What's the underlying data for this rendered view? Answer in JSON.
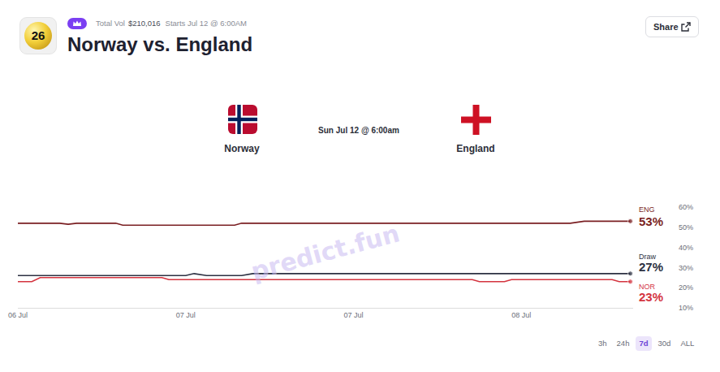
{
  "header": {
    "icon_text": "26",
    "total_vol_label": "Total Vol",
    "total_vol": "$210,016",
    "starts": "Starts Jul 12 @ 6:00AM",
    "title": "Norway vs. England",
    "share": "Share"
  },
  "match": {
    "home": "Norway",
    "away": "England",
    "date": "Sun Jul 12 @ 6:00am"
  },
  "watermark": "predict.fun",
  "range_buttons": {
    "options": [
      "3h",
      "24h",
      "7d",
      "30d",
      "ALL"
    ],
    "selected": "7d"
  },
  "chart_data": {
    "type": "line",
    "x": [
      0,
      1,
      1.6,
      3,
      3.6,
      4.2,
      7,
      7.5,
      10.3,
      10.8,
      12,
      12.6,
      13.5,
      15.5,
      16,
      16.8,
      32.5,
      33,
      34.8,
      35.3,
      39.5,
      40.5,
      42.5,
      43,
      43.8
    ],
    "series": [
      {
        "name": "ENG",
        "color": "#7a1f22",
        "values": [
          52,
          52,
          52,
          52,
          51.5,
          52,
          52,
          51,
          51,
          51,
          51,
          51,
          51,
          51,
          52,
          52,
          52,
          52,
          52,
          52,
          52,
          53,
          53,
          53,
          53
        ],
        "value_labels": [
          null,
          null,
          null,
          null,
          null,
          null,
          null,
          null,
          null,
          null,
          null,
          null,
          null,
          null,
          null,
          null,
          null,
          null,
          null,
          null,
          null,
          null,
          null,
          null,
          "53%"
        ]
      },
      {
        "name": "Draw",
        "color": "#2d3142",
        "values": [
          26,
          26,
          26,
          26,
          26,
          26,
          26,
          26,
          26,
          26,
          26,
          27,
          26,
          26,
          26,
          27,
          27,
          27,
          27,
          27,
          27,
          27,
          27,
          27,
          27
        ],
        "value_labels": [
          null,
          null,
          null,
          null,
          null,
          null,
          null,
          null,
          null,
          null,
          null,
          null,
          null,
          null,
          null,
          null,
          null,
          null,
          null,
          null,
          null,
          null,
          null,
          null,
          "27%"
        ]
      },
      {
        "name": "NOR",
        "color": "#d4343f",
        "values": [
          23,
          23,
          25,
          25,
          25,
          25,
          25,
          25,
          25,
          24,
          24,
          24,
          24,
          24,
          24,
          24,
          24,
          23,
          23,
          24,
          24,
          24,
          24,
          23,
          23
        ],
        "value_labels": [
          null,
          null,
          null,
          null,
          null,
          null,
          null,
          null,
          null,
          null,
          null,
          null,
          null,
          null,
          null,
          null,
          null,
          null,
          null,
          null,
          null,
          null,
          null,
          null,
          "23%"
        ]
      }
    ],
    "xlim": [
      0,
      44
    ],
    "xticks": [
      {
        "value": 0,
        "label": "06 Jul"
      },
      {
        "value": 12,
        "label": "07 Jul"
      },
      {
        "value": 24,
        "label": "07 Jul"
      },
      {
        "value": 36,
        "label": "08 Jul"
      }
    ],
    "ylim": [
      10,
      60
    ],
    "yticks": [
      {
        "value": 10,
        "label": "10%"
      },
      {
        "value": 20,
        "label": "20%"
      },
      {
        "value": 30,
        "label": "30%"
      },
      {
        "value": 40,
        "label": "40%"
      },
      {
        "value": 50,
        "label": "50%"
      },
      {
        "value": 60,
        "label": "60%"
      }
    ],
    "grid": false,
    "data_labels": true
  }
}
